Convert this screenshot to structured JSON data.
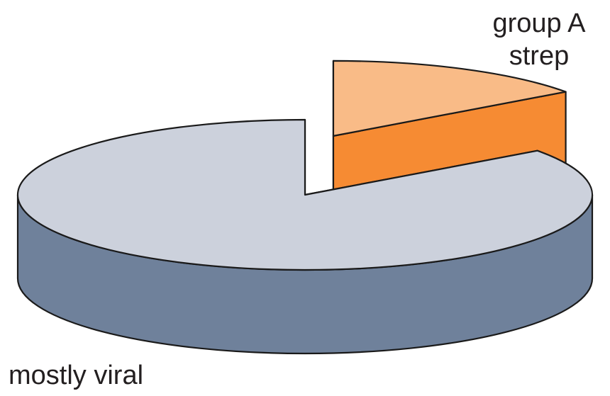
{
  "chart_data": {
    "type": "pie",
    "style": "3d-exploded",
    "slices": [
      {
        "label": "group A strep",
        "label_lines": [
          "group A",
          "strep"
        ],
        "value": 15,
        "top_color": "#f9bb87",
        "side_color": "#f68b33",
        "exploded": true
      },
      {
        "label": "mostly viral",
        "label_lines": [
          "mostly viral"
        ],
        "value": 85,
        "top_color": "#ccd1dc",
        "side_color": "#6f819b",
        "exploded": false
      }
    ],
    "outline_color": "#1a1a1a"
  }
}
